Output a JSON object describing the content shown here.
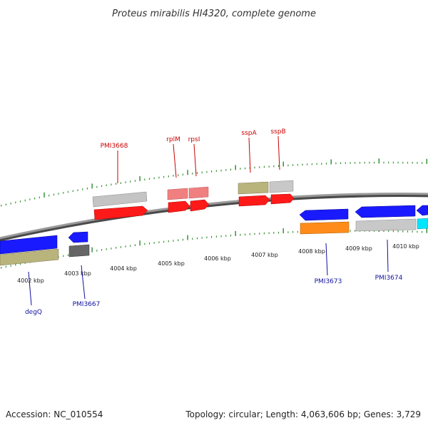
{
  "title": "Proteus mirabilis HI4320, complete genome",
  "footer": {
    "accession": "Accession: NC_010554",
    "topology": "Topology: circular; Length: 4,063,606 bp; Genes: 3,729"
  },
  "scale_labels": [
    "4002 kbp",
    "4003 kbp",
    "4004 kbp",
    "4005 kbp",
    "4006 kbp",
    "4007 kbp",
    "4008 kbp",
    "4009 kbp",
    "4010 kbp"
  ],
  "gene_labels_top": [
    "PMI3668",
    "rplM",
    "rpsI",
    "sspA",
    "sspB"
  ],
  "gene_labels_bottom": [
    "degQ",
    "PMI3667",
    "PMI3673",
    "PMI3674"
  ],
  "colors": {
    "backbone": "#7a7a7a",
    "tick": "#2a8a2a",
    "cds_red": "#ff1a1a",
    "cds_pink": "#f08080",
    "cds_blue": "#1a1aff",
    "cds_orange": "#ff8c1a",
    "cds_cyan": "#00e5ff",
    "olive": "#b9b47c",
    "grey": "#c8c8c8",
    "dark_grey": "#666666",
    "label_red": "#cc0000",
    "label_blue": "#1010a0"
  }
}
